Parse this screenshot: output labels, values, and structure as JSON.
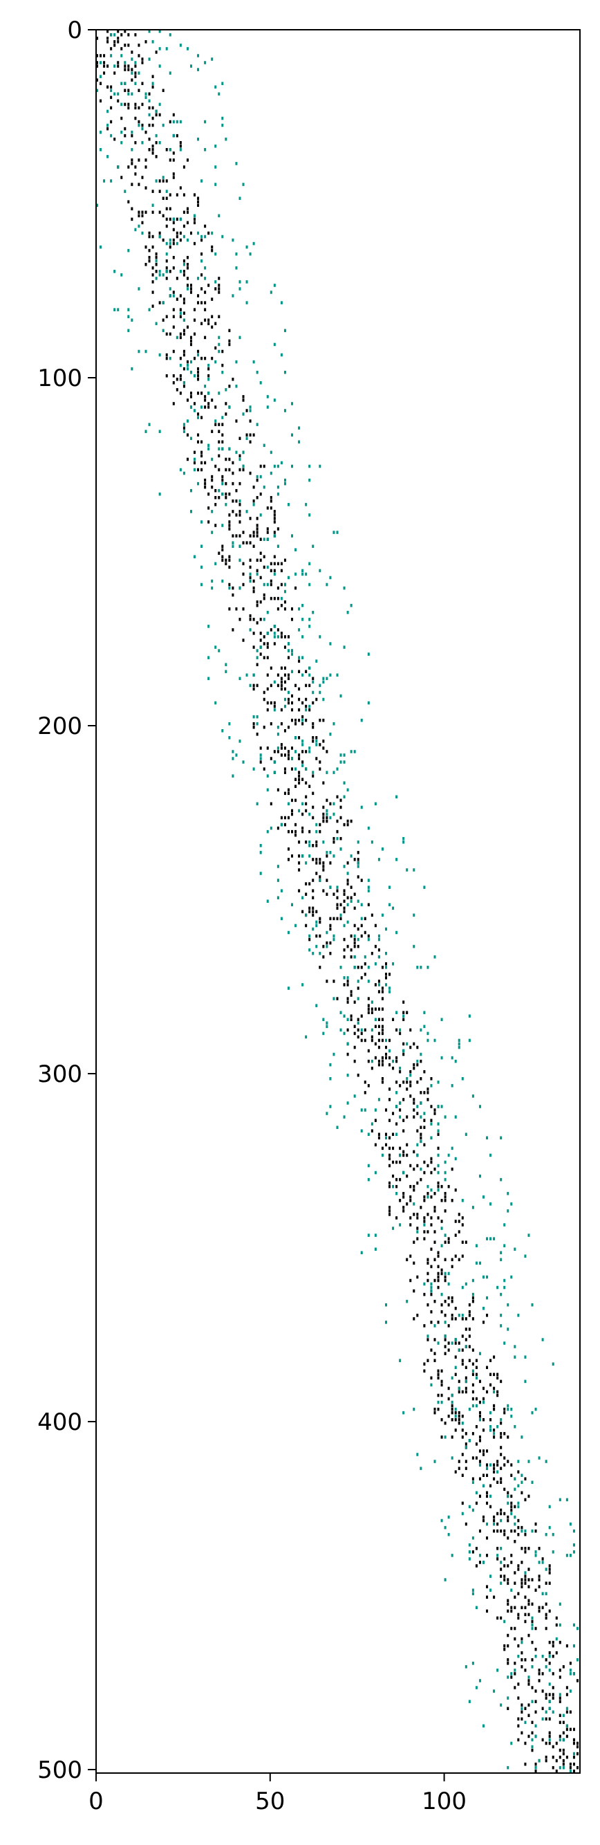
{
  "chart_data": {
    "type": "heatmap",
    "title": "",
    "xlabel": "",
    "ylabel": "",
    "xlim": [
      0,
      139
    ],
    "ylim": [
      501,
      0
    ],
    "x_ticks": [
      0,
      50,
      100
    ],
    "y_ticks": [
      0,
      100,
      200,
      300,
      400,
      500
    ],
    "x_tick_labels": [
      "0",
      "50",
      "100"
    ],
    "y_tick_labels": [
      "0",
      "100",
      "200",
      "300",
      "400",
      "500"
    ],
    "grid": false,
    "legend": "none",
    "series": [
      {
        "color": "#000000",
        "density": 0.22,
        "center_offset": 0,
        "band_half_width": 10,
        "seed": 11
      },
      {
        "color": "#009688",
        "density": 0.06,
        "center_offset": 3,
        "band_half_width": 24,
        "seed": 29
      }
    ],
    "diagonal_profile": [
      {
        "y": 0,
        "x": 5
      },
      {
        "y": 50,
        "x": 20
      },
      {
        "y": 100,
        "x": 30
      },
      {
        "y": 150,
        "x": 45
      },
      {
        "y": 200,
        "x": 55
      },
      {
        "y": 250,
        "x": 68
      },
      {
        "y": 300,
        "x": 85
      },
      {
        "y": 350,
        "x": 97
      },
      {
        "y": 400,
        "x": 108
      },
      {
        "y": 450,
        "x": 122
      },
      {
        "y": 501,
        "x": 133
      }
    ]
  }
}
